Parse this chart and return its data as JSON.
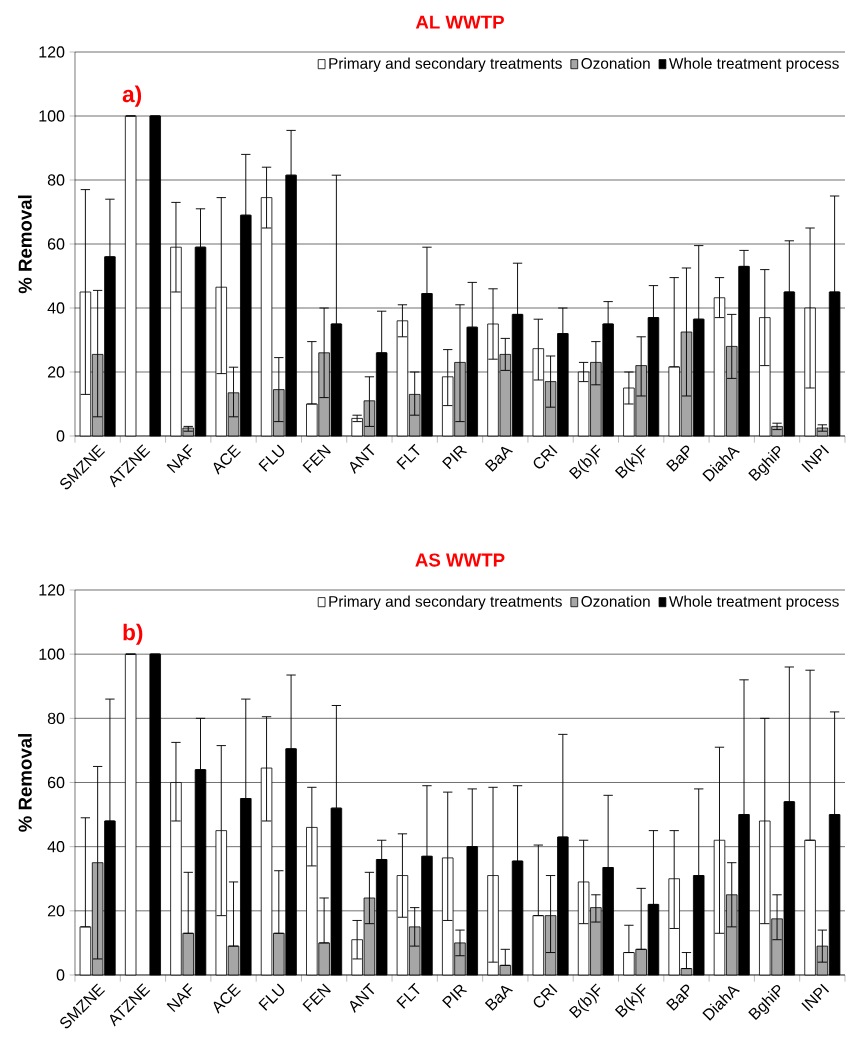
{
  "chart_data": [
    {
      "type": "bar",
      "title": "AL WWTP",
      "ylabel": "% Removal",
      "annotations": [
        "a)"
      ],
      "categories": [
        "SMZNE",
        "ATZNE",
        "NAF",
        "ACE",
        "FLU",
        "FEN",
        "ANT",
        "FLT",
        "PIR",
        "BaA",
        "CRI",
        "B(b)F",
        "B(k)F",
        "BaP",
        "DiahA",
        "BghiP",
        "INPI"
      ],
      "series": [
        {
          "name": "Primary and secondary treatments",
          "color": "#ffffff",
          "values": [
            45,
            100,
            59,
            46.5,
            74.5,
            10,
            5.5,
            36,
            18.5,
            35,
            27.3,
            20,
            15,
            21.6,
            43.2,
            37,
            40
          ],
          "errors": [
            [
              13,
              77
            ],
            null,
            [
              45,
              73
            ],
            [
              19.5,
              74.5
            ],
            [
              65,
              84
            ],
            [
              10,
              29.5
            ],
            [
              4.5,
              6.5
            ],
            [
              31,
              41
            ],
            [
              9.5,
              27
            ],
            [
              24,
              46
            ],
            [
              17.5,
              36.5
            ],
            [
              17,
              23
            ],
            [
              10,
              20
            ],
            [
              21.6,
              49.5
            ],
            [
              37,
              49.5
            ],
            [
              22,
              52
            ],
            [
              15,
              65
            ]
          ]
        },
        {
          "name": "Ozonation",
          "color": "#a6a6a6",
          "values": [
            25.5,
            null,
            2.5,
            13.5,
            14.5,
            26,
            11,
            13,
            23,
            25.5,
            17,
            23,
            22,
            32.5,
            28,
            3,
            2.5
          ],
          "errors": [
            [
              6,
              45.5
            ],
            null,
            [
              1.5,
              3
            ],
            [
              6,
              21.5
            ],
            [
              4.5,
              24.5
            ],
            [
              12,
              40
            ],
            [
              3,
              18.5
            ],
            [
              6.5,
              20
            ],
            [
              4.5,
              41
            ],
            [
              20.5,
              30.5
            ],
            [
              9,
              25
            ],
            [
              16,
              29.5
            ],
            [
              12.5,
              31
            ],
            [
              12.5,
              52.5
            ],
            [
              18,
              38
            ],
            [
              2,
              4
            ],
            [
              1.5,
              3.5
            ]
          ]
        },
        {
          "name": "Whole treatment process",
          "color": "#000000",
          "values": [
            56,
            100,
            59,
            69,
            81.5,
            35,
            26,
            44.5,
            34,
            38,
            32,
            35,
            37,
            36.5,
            53,
            45,
            45
          ],
          "errors": [
            [
              56,
              74
            ],
            null,
            [
              59,
              71
            ],
            [
              69,
              88
            ],
            [
              81.5,
              95.5
            ],
            [
              35,
              81.5
            ],
            [
              26,
              39
            ],
            [
              44.5,
              59
            ],
            [
              34,
              48
            ],
            [
              38,
              54
            ],
            [
              32,
              40
            ],
            [
              35,
              42
            ],
            [
              37,
              47
            ],
            [
              36.5,
              59.5
            ],
            [
              53,
              58
            ],
            [
              45,
              61
            ],
            [
              45,
              75
            ]
          ]
        }
      ],
      "ylim": [
        0,
        120
      ],
      "yticks": [
        0,
        20,
        40,
        60,
        80,
        100,
        120
      ],
      "grid": "y",
      "legend": "top right"
    },
    {
      "type": "bar",
      "title": "AS WWTP",
      "ylabel": "% Removal",
      "annotations": [
        "b)"
      ],
      "categories": [
        "SMZNE",
        "ATZNE",
        "NAF",
        "ACE",
        "FLU",
        "FEN",
        "ANT",
        "FLT",
        "PIR",
        "BaA",
        "CRI",
        "B(b)F",
        "B(k)F",
        "BaP",
        "DiahA",
        "BghiP",
        "INPI"
      ],
      "series": [
        {
          "name": "Primary and secondary treatments",
          "color": "#ffffff",
          "values": [
            15,
            100,
            60,
            45,
            64.5,
            46,
            11,
            31,
            36.5,
            31,
            18.5,
            29,
            7,
            30,
            42,
            48,
            42
          ],
          "errors": [
            [
              15,
              49
            ],
            null,
            [
              48,
              72.5
            ],
            [
              18.5,
              71.5
            ],
            [
              48,
              80.5
            ],
            [
              34,
              58.5
            ],
            [
              5,
              17
            ],
            [
              18,
              44
            ],
            [
              17,
              57
            ],
            [
              4,
              58.5
            ],
            [
              18.5,
              40.5
            ],
            [
              16,
              42
            ],
            [
              7,
              15.5
            ],
            [
              14.5,
              45
            ],
            [
              13,
              71
            ],
            [
              16,
              80
            ],
            [
              42,
              95
            ]
          ]
        },
        {
          "name": "Ozonation",
          "color": "#a6a6a6",
          "values": [
            35,
            null,
            13,
            9,
            13,
            10,
            24,
            15,
            10,
            3,
            18.5,
            21,
            8,
            2,
            25,
            17.5,
            9
          ],
          "errors": [
            [
              5,
              65
            ],
            null,
            [
              13,
              32
            ],
            [
              9,
              29
            ],
            [
              13,
              32.5
            ],
            [
              10,
              24
            ],
            [
              16,
              32
            ],
            [
              9,
              21
            ],
            [
              6,
              14
            ],
            [
              3,
              8
            ],
            [
              7,
              31
            ],
            [
              16.5,
              25
            ],
            [
              8,
              27
            ],
            [
              2,
              7
            ],
            [
              15,
              35
            ],
            [
              11,
              25
            ],
            [
              4,
              14
            ]
          ]
        },
        {
          "name": "Whole treatment process",
          "color": "#000000",
          "values": [
            48,
            100,
            64,
            55,
            70.5,
            52,
            36,
            37,
            40,
            35.5,
            43,
            33.5,
            22,
            31,
            50,
            54,
            50
          ],
          "errors": [
            [
              48,
              86
            ],
            null,
            [
              64,
              80
            ],
            [
              55,
              86
            ],
            [
              70.5,
              93.5
            ],
            [
              52,
              84
            ],
            [
              36,
              42
            ],
            [
              37,
              59
            ],
            [
              40,
              58
            ],
            [
              35.5,
              59
            ],
            [
              43,
              75
            ],
            [
              33.5,
              56
            ],
            [
              22,
              45
            ],
            [
              31,
              58
            ],
            [
              50,
              92
            ],
            [
              54,
              96
            ],
            [
              50,
              82
            ]
          ]
        }
      ],
      "ylim": [
        0,
        120
      ],
      "yticks": [
        0,
        20,
        40,
        60,
        80,
        100,
        120
      ],
      "grid": "y",
      "legend": "top right"
    }
  ]
}
